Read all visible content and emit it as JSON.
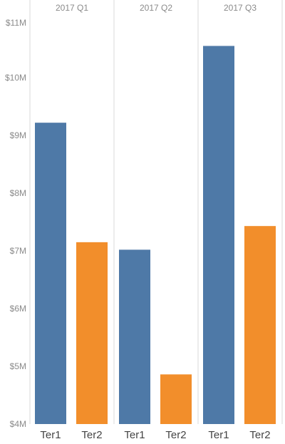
{
  "chart_data": {
    "type": "bar",
    "panels": [
      "2017 Q1",
      "2017 Q2",
      "2017 Q3"
    ],
    "categories": [
      "Ter1",
      "Ter2"
    ],
    "series": [
      {
        "panel": "2017 Q1",
        "values": [
          9.22,
          7.15
        ]
      },
      {
        "panel": "2017 Q2",
        "values": [
          7.02,
          4.86
        ]
      },
      {
        "panel": "2017 Q3",
        "values": [
          10.55,
          7.43
        ]
      }
    ],
    "y_ticks": [
      "$4M",
      "$5M",
      "$6M",
      "$7M",
      "$8M",
      "$9M",
      "$10M",
      "$11M"
    ],
    "y_tick_values": [
      4,
      5,
      6,
      7,
      8,
      9,
      10,
      11
    ],
    "ylim": [
      4,
      11
    ],
    "unit": "M",
    "grid": false,
    "colors": {
      "Ter1": "#4e79a7",
      "Ter2": "#f28e2b",
      "divider": "#d9d9d9",
      "text": "#8a8a8a",
      "category_text": "#444444"
    }
  }
}
